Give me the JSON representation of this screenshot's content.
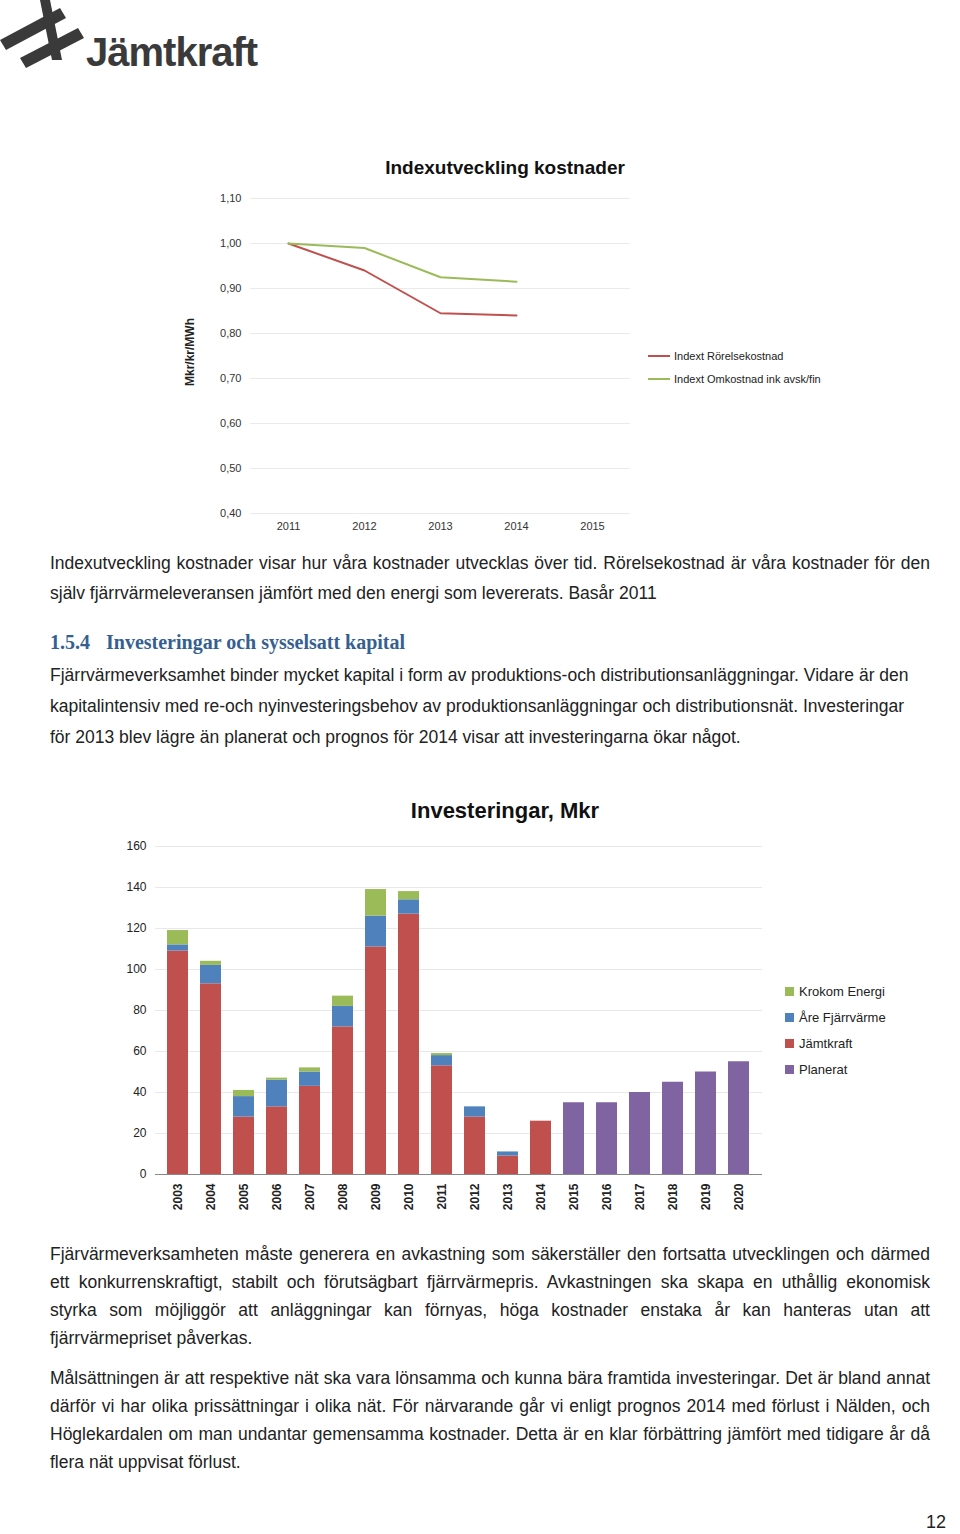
{
  "document": {
    "logo": "Jämtkraft",
    "text_after_chart_1": "Indexutveckling kostnader visar hur våra kostnader utvecklas över tid. Rörelsekostnad är våra kostnader för den själv fjärrvärmeleveransen jämfört med den energi som levererats. Basår 2011",
    "section": {
      "number": "1.5.4",
      "title": "Investeringar och sysselsatt kapital",
      "text": "Fjärrvärmeverksamhet binder mycket kapital i form av produktions-och distributionsanläggningar. Vidare är den kapitalintensiv med re-och nyinvesteringsbehov av produktionsanläggningar och distributionsnät. Investeringar för 2013 blev lägre än planerat och prognos för 2014 visar att investeringarna ökar något."
    },
    "text_after_chart_2": [
      "Fjärvärmeverksamheten måste generera en avkastning som säkerställer den fortsatta utvecklingen och därmed ett konkurrenskraftigt, stabilt och förutsägbart fjärrvärmepris. Avkastningen ska skapa en uthållig ekonomisk styrka som möjliggör att anläggningar kan förnyas, höga kostnader enstaka år kan hanteras utan att fjärrvärmepriset påverkas.",
      "Målsättningen är att respektive nät ska vara lönsamma och kunna bära framtida investeringar. Det är bland annat därför vi har olika prissättningar i olika nät. För närvarande går vi enligt prognos 2014 med förlust i Nälden, och Höglekardalen om man undantar gemensamma kostnader. Detta är en klar förbättring jämfört med tidigare år då flera nät uppvisat förlust."
    ],
    "page_number": 12
  },
  "chart_data": [
    {
      "type": "line",
      "title": "Indexutveckling kostnader",
      "y_label": "Mkr/kr/MWh",
      "categories": [
        "2011",
        "2012",
        "2013",
        "2014",
        "2015"
      ],
      "series": [
        {
          "name": "Indext Rörelsekostnad",
          "color": "#c0504d",
          "values": [
            1.0,
            0.94,
            0.845,
            0.84,
            null
          ]
        },
        {
          "name": "Indext Omkostnad ink avsk/fin",
          "color": "#9bbb59",
          "values": [
            1.0,
            0.99,
            0.925,
            0.915,
            null
          ]
        }
      ],
      "ylim": [
        0.4,
        1.1
      ],
      "yticks": [
        {
          "value": 0.4,
          "label": "0,40"
        },
        {
          "value": 0.5,
          "label": "0,50"
        },
        {
          "value": 0.6,
          "label": "0,60"
        },
        {
          "value": 0.7,
          "label": "0,70"
        },
        {
          "value": 0.8,
          "label": "0,80"
        },
        {
          "value": 0.9,
          "label": "0,90"
        },
        {
          "value": 1.0,
          "label": "1,00"
        },
        {
          "value": 1.1,
          "label": "1,10"
        }
      ],
      "grid": true,
      "legend": "right"
    },
    {
      "type": "bar",
      "stacked": true,
      "title": "Investeringar, Mkr",
      "categories": [
        "2003",
        "2004",
        "2005",
        "2006",
        "2007",
        "2008",
        "2009",
        "2010",
        "2011",
        "2012",
        "2013",
        "2014",
        "2015",
        "2016",
        "2017",
        "2018",
        "2019",
        "2020"
      ],
      "series": [
        {
          "name": "Krokom Energi",
          "color": "#9bbb59",
          "values": [
            7,
            2,
            3,
            1,
            2,
            5,
            13,
            4,
            1,
            0,
            0,
            0,
            null,
            null,
            null,
            null,
            null,
            null
          ]
        },
        {
          "name": "Åre Fjärrvärme",
          "color": "#4f81bd",
          "values": [
            3,
            9,
            10,
            13,
            7,
            10,
            15,
            7,
            5,
            5,
            2,
            0,
            null,
            null,
            null,
            null,
            null,
            null
          ]
        },
        {
          "name": "Jämtkraft",
          "color": "#c0504d",
          "values": [
            109,
            93,
            28,
            33,
            43,
            72,
            111,
            127,
            53,
            28,
            9,
            26,
            null,
            null,
            null,
            null,
            null,
            null
          ]
        },
        {
          "name": "Planerat",
          "color": "#8064a2",
          "values": [
            null,
            null,
            null,
            null,
            null,
            null,
            null,
            null,
            null,
            null,
            null,
            null,
            35,
            35,
            40,
            45,
            50,
            55
          ]
        }
      ],
      "ylim": [
        0,
        160
      ],
      "yticks": [
        0,
        20,
        40,
        60,
        80,
        100,
        120,
        140,
        160
      ],
      "grid": true,
      "legend": "right"
    }
  ]
}
